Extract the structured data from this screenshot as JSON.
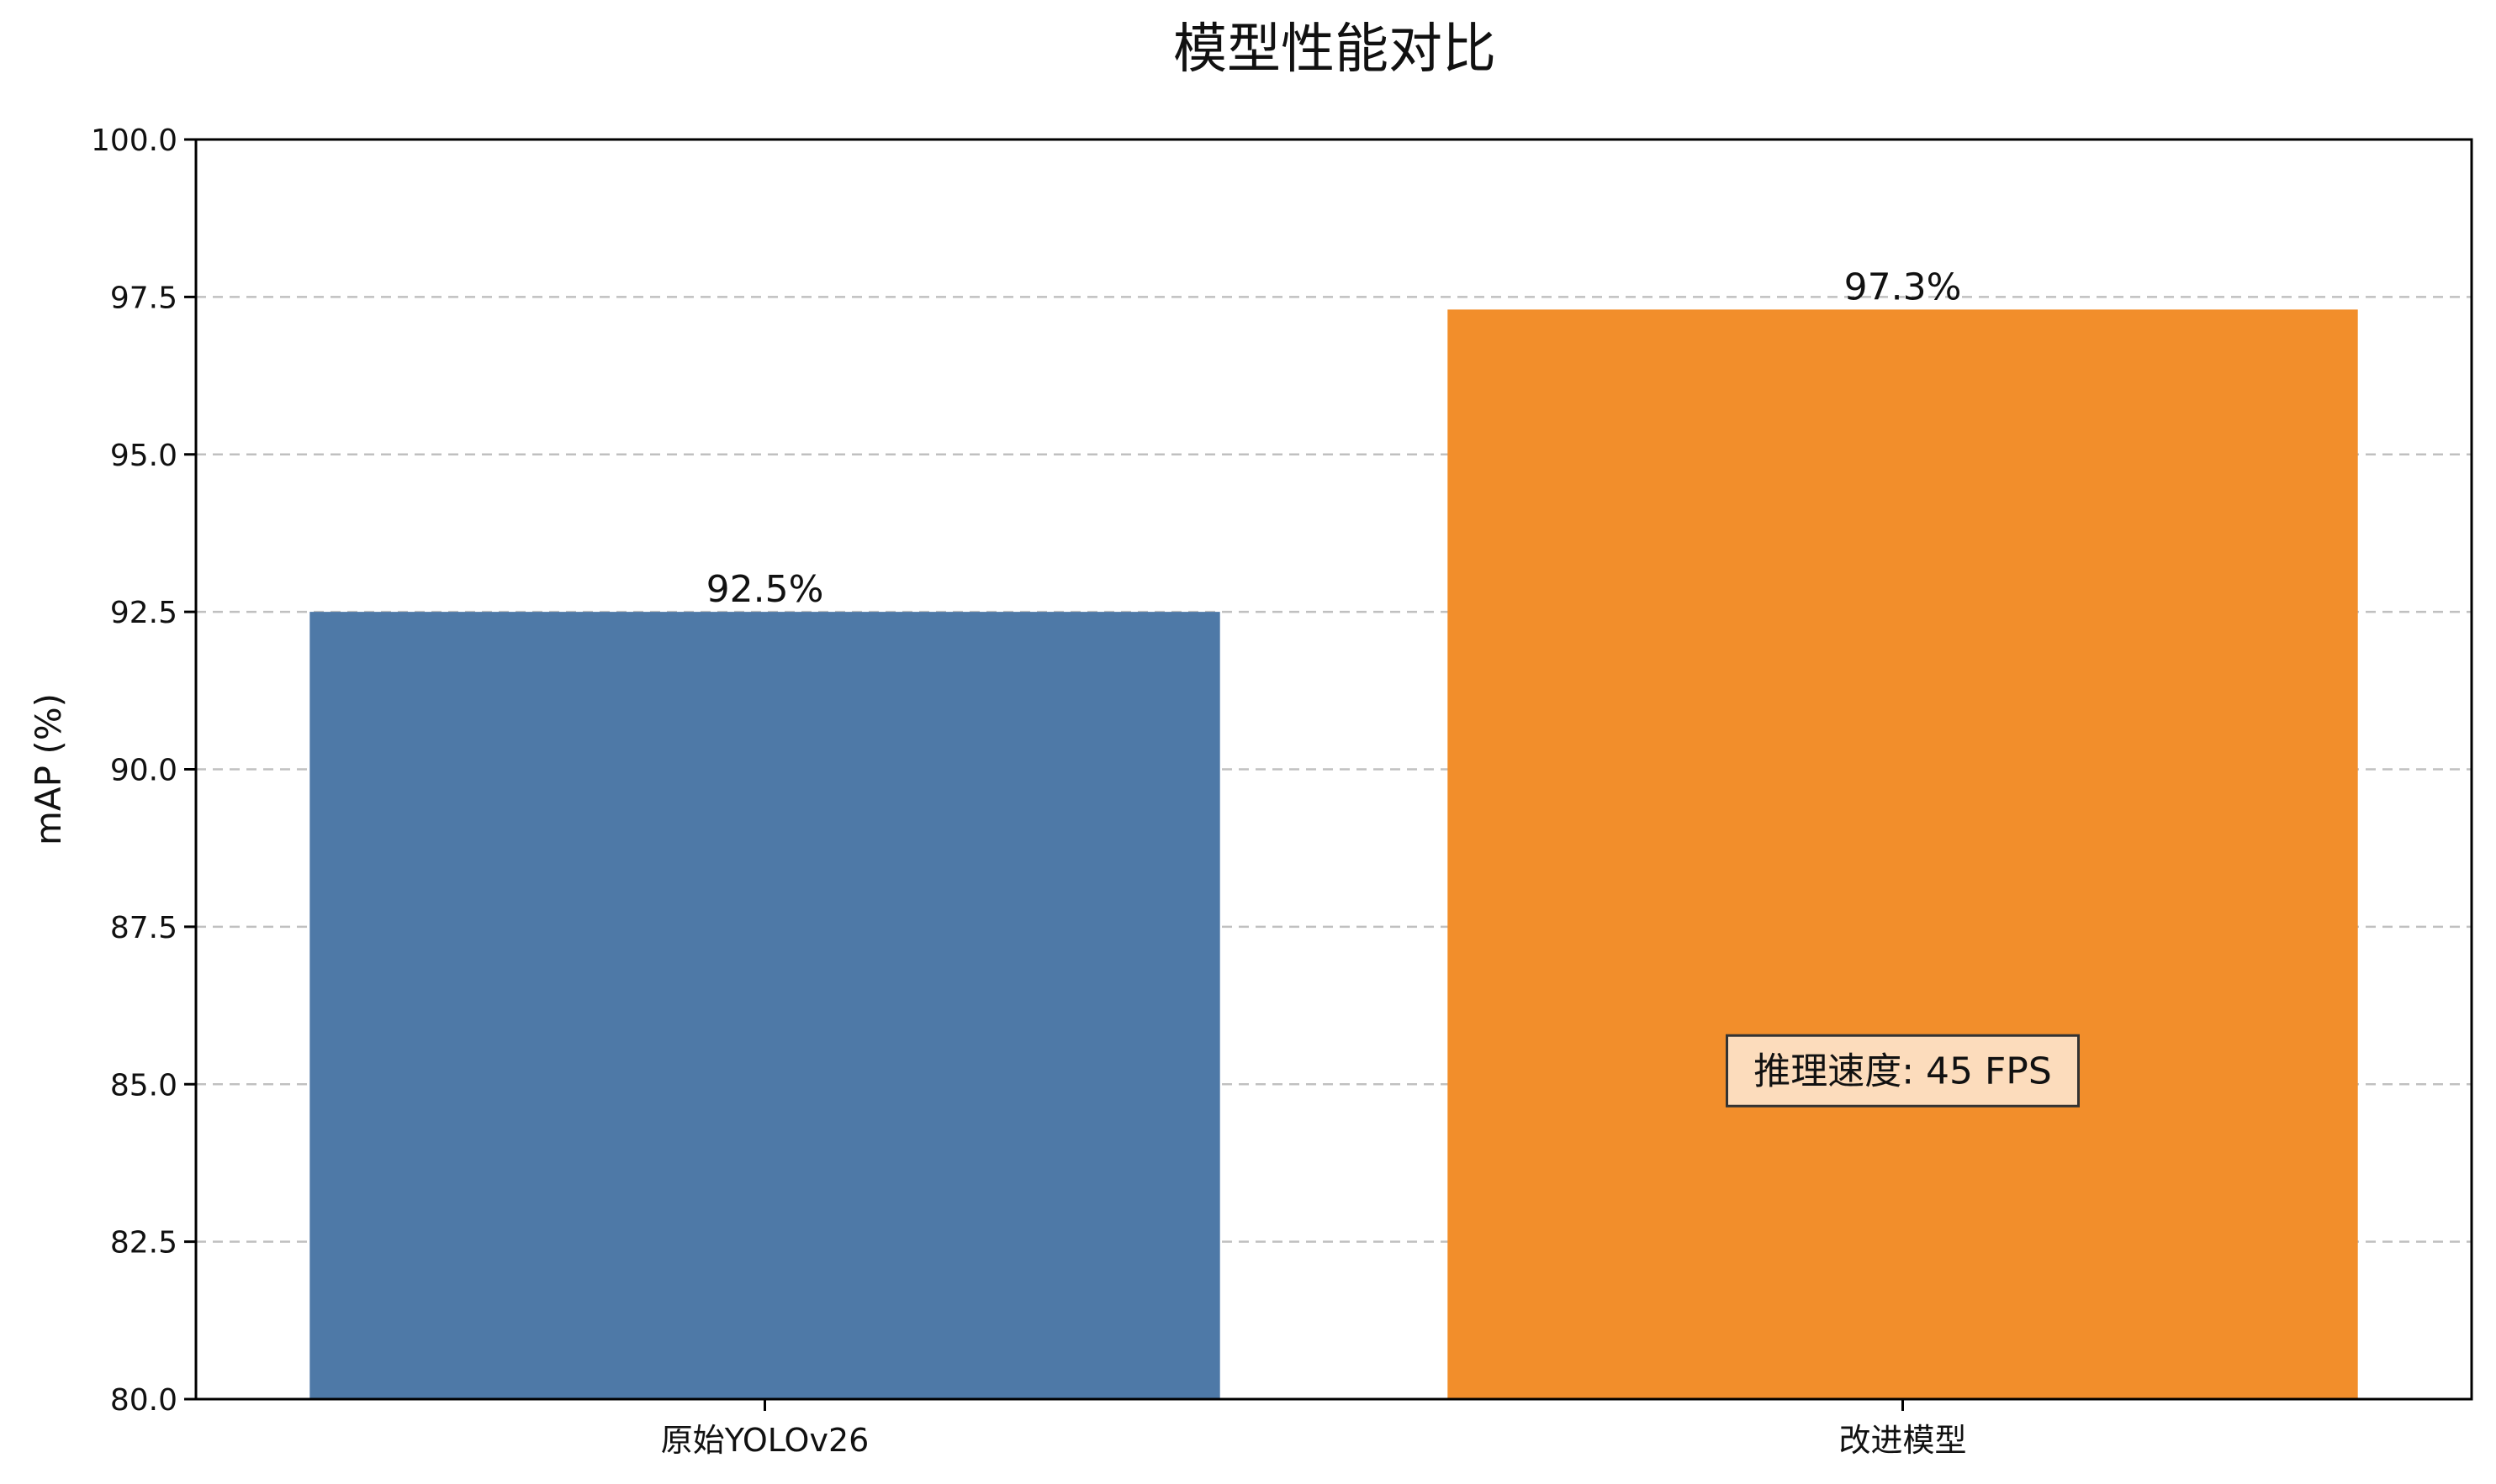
{
  "chart_data": {
    "type": "bar",
    "title": "模型性能对比",
    "xlabel": "",
    "ylabel": "mAP (%)",
    "ylim": [
      80,
      100
    ],
    "yticks": [
      80.0,
      82.5,
      85.0,
      87.5,
      90.0,
      92.5,
      95.0,
      97.5,
      100.0
    ],
    "ytick_labels": [
      "80.0",
      "82.5",
      "85.0",
      "87.5",
      "90.0",
      "92.5",
      "95.0",
      "97.5",
      "100.0"
    ],
    "categories": [
      "原始YOLOv26",
      "改进模型"
    ],
    "values": [
      92.5,
      97.3
    ],
    "value_labels": [
      "92.5%",
      "97.3%"
    ],
    "colors": [
      "#4e79a7",
      "#f28e2b"
    ],
    "grid": "y, dashed",
    "annotation": {
      "text": "推理速度: 45 FPS",
      "category": "改进模型",
      "y": 85.0,
      "box_fill": "#fcdcbc",
      "box_edge": "#333333"
    }
  }
}
